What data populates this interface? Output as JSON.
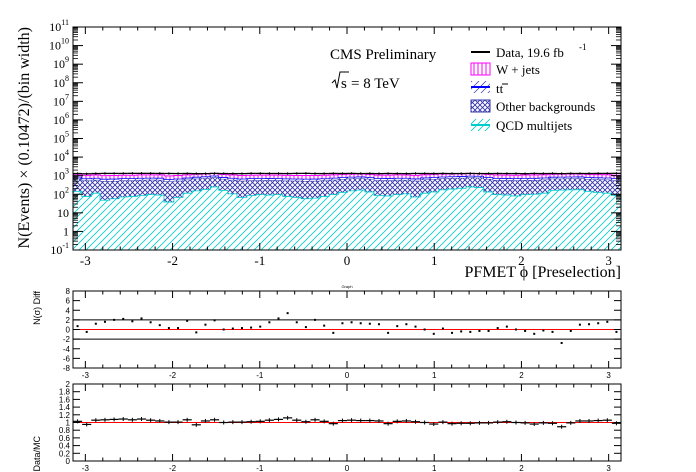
{
  "chart_data": [
    {
      "type": "histogram",
      "role": "main-panel",
      "title": "CMS Preliminary",
      "energy_label": "= 8 TeV",
      "xlabel": "PFMET ϕ [Preselection]",
      "ylabel": "N(Events) × (0.10472)/(bin width)",
      "yscale": "log",
      "xlim": [
        -3.1416,
        3.1416
      ],
      "ylim": [
        0.1,
        100000000000.0
      ],
      "x_ticks": [
        "-3",
        "-2",
        "-1",
        "0",
        "1",
        "2",
        "3"
      ],
      "y_ticks": [
        {
          "base": "10",
          "exp": "-1"
        },
        {
          "base": "1",
          "exp": ""
        },
        {
          "base": "10",
          "exp": ""
        },
        {
          "base": "10",
          "exp": "2"
        },
        {
          "base": "10",
          "exp": "3"
        },
        {
          "base": "10",
          "exp": "4"
        },
        {
          "base": "10",
          "exp": "5"
        },
        {
          "base": "10",
          "exp": "6"
        },
        {
          "base": "10",
          "exp": "7"
        },
        {
          "base": "10",
          "exp": "8"
        },
        {
          "base": "10",
          "exp": "9"
        },
        {
          "base": "10",
          "exp": "10"
        },
        {
          "base": "10",
          "exp": "11"
        }
      ],
      "bins": 60,
      "legend_position": "top-right",
      "legend": {
        "data": "Data, 19.6 fb",
        "data_sup": "-1",
        "wjets": "W + jets",
        "ttbar": "tt",
        "other": "Other backgrounds",
        "qcd": "QCD multijets"
      },
      "series": [
        {
          "name": "QCD multijets",
          "color": "#00cccc",
          "values": [
            150,
            80,
            120,
            50,
            60,
            75,
            80,
            90,
            100,
            95,
            40,
            70,
            120,
            160,
            190,
            260,
            170,
            110,
            70,
            90,
            100,
            95,
            100,
            80,
            70,
            60,
            65,
            80,
            100,
            130,
            160,
            175,
            140,
            90,
            85,
            100,
            110,
            75,
            120,
            140,
            180,
            200,
            220,
            260,
            240,
            140,
            100,
            95,
            85,
            100,
            105,
            120,
            170,
            175,
            180,
            185,
            150,
            130,
            120,
            90
          ]
        },
        {
          "name": "Other backgrounds",
          "color": "#3333aa",
          "values": [
            550,
            470,
            470,
            460,
            460,
            480,
            480,
            500,
            500,
            500,
            450,
            460,
            490,
            530,
            540,
            560,
            500,
            480,
            460,
            470,
            470,
            480,
            470,
            460,
            460,
            460,
            460,
            470,
            500,
            530,
            540,
            540,
            530,
            480,
            480,
            490,
            480,
            460,
            500,
            520,
            530,
            540,
            540,
            550,
            550,
            520,
            480,
            480,
            470,
            480,
            480,
            490,
            520,
            520,
            530,
            530,
            510,
            500,
            490,
            470
          ]
        },
        {
          "name": "tt",
          "color": "#0000ff",
          "values": [
            180,
            170,
            170,
            170,
            170,
            170,
            170,
            175,
            175,
            175,
            165,
            165,
            170,
            180,
            180,
            185,
            175,
            170,
            165,
            170,
            170,
            170,
            170,
            165,
            165,
            165,
            165,
            170,
            175,
            180,
            180,
            180,
            180,
            170,
            170,
            175,
            170,
            165,
            175,
            180,
            180,
            180,
            180,
            185,
            185,
            180,
            170,
            170,
            170,
            170,
            170,
            175,
            180,
            180,
            180,
            180,
            180,
            175,
            175,
            170
          ]
        },
        {
          "name": "W + jets",
          "color": "#ff00ff",
          "values": [
            310,
            320,
            320,
            330,
            330,
            330,
            330,
            330,
            330,
            330,
            320,
            320,
            330,
            330,
            330,
            330,
            330,
            330,
            320,
            330,
            330,
            330,
            330,
            330,
            330,
            330,
            330,
            330,
            330,
            330,
            330,
            330,
            330,
            330,
            330,
            330,
            330,
            330,
            330,
            330,
            330,
            330,
            330,
            330,
            330,
            330,
            330,
            330,
            330,
            330,
            330,
            330,
            330,
            330,
            330,
            330,
            330,
            330,
            330,
            320
          ]
        },
        {
          "name": "Data, 19.6 fb-1",
          "color": "#000000",
          "values": [
            1300,
            1260,
            1300,
            1320,
            1320,
            1320,
            1330,
            1330,
            1330,
            1320,
            1310,
            1300,
            1310,
            1290,
            1290,
            1320,
            1300,
            1290,
            1290,
            1320,
            1320,
            1310,
            1310,
            1300,
            1320,
            1330,
            1300,
            1300,
            1320,
            1310,
            1320,
            1300,
            1310,
            1290,
            1310,
            1300,
            1290,
            1310,
            1310,
            1300,
            1310,
            1300,
            1300,
            1310,
            1300,
            1300,
            1310,
            1300,
            1300,
            1280,
            1310,
            1300,
            1310,
            1290,
            1310,
            1310,
            1310,
            1320,
            1320,
            1330
          ]
        }
      ]
    },
    {
      "type": "scatter",
      "role": "pull-panel",
      "title": "Graph",
      "ylabel": "N(σ) Diff",
      "xlim": [
        -3.1416,
        3.1416
      ],
      "ylim": [
        -8,
        8
      ],
      "x_ticks": [
        "-3",
        "-2",
        "-1",
        "0",
        "1",
        "2",
        "3"
      ],
      "y_ticks": [
        "-8",
        "-6",
        "-4",
        "-2",
        "0",
        "2",
        "4",
        "6",
        "8"
      ],
      "reference_lines": [
        -2,
        0,
        2
      ],
      "values": [
        0.7,
        -0.5,
        1.2,
        1.6,
        2.0,
        2.2,
        1.7,
        2.3,
        1.5,
        0.9,
        0.3,
        0.3,
        1.8,
        -0.6,
        1.0,
        1.9,
        0.0,
        0.2,
        0.3,
        0.4,
        0.6,
        1.5,
        2.3,
        3.4,
        1.5,
        0.5,
        2.0,
        0.8,
        -0.7,
        1.3,
        1.5,
        1.3,
        1.2,
        1.1,
        -0.7,
        0.7,
        1.1,
        0.6,
        0.0,
        -0.9,
        0.2,
        -0.7,
        -0.4,
        -0.5,
        -0.3,
        -0.3,
        0.3,
        0.6,
        0.0,
        -0.3,
        -0.9,
        -0.2,
        -0.5,
        -2.8,
        -0.3,
        1.0,
        1.1,
        1.3,
        1.6,
        -0.5
      ]
    },
    {
      "type": "scatter",
      "role": "ratio-panel",
      "ylabel": "Data/MC",
      "xlim": [
        -3.1416,
        3.1416
      ],
      "ylim": [
        0,
        2
      ],
      "x_ticks": [
        "-3",
        "-2",
        "-1",
        "0",
        "1",
        "2",
        "3"
      ],
      "y_ticks": [
        "0",
        "0.2",
        "0.4",
        "0.6",
        "0.8",
        "1",
        "1.2",
        "1.4",
        "1.6",
        "1.8",
        "2"
      ],
      "reference_line": 1,
      "values": [
        1.03,
        0.95,
        1.06,
        1.07,
        1.08,
        1.09,
        1.07,
        1.09,
        1.06,
        1.04,
        1.01,
        1.01,
        1.07,
        0.94,
        1.04,
        1.07,
        1.0,
        1.01,
        1.01,
        1.02,
        1.03,
        1.06,
        1.08,
        1.12,
        1.06,
        1.02,
        1.07,
        1.03,
        0.97,
        1.05,
        1.06,
        1.05,
        1.05,
        1.04,
        0.97,
        1.03,
        1.04,
        1.02,
        1.0,
        0.96,
        1.01,
        0.97,
        0.98,
        0.98,
        0.99,
        0.99,
        1.01,
        1.02,
        1.0,
        0.99,
        0.96,
        0.99,
        0.98,
        0.89,
        0.99,
        1.04,
        1.04,
        1.05,
        1.06,
        0.98
      ]
    }
  ]
}
